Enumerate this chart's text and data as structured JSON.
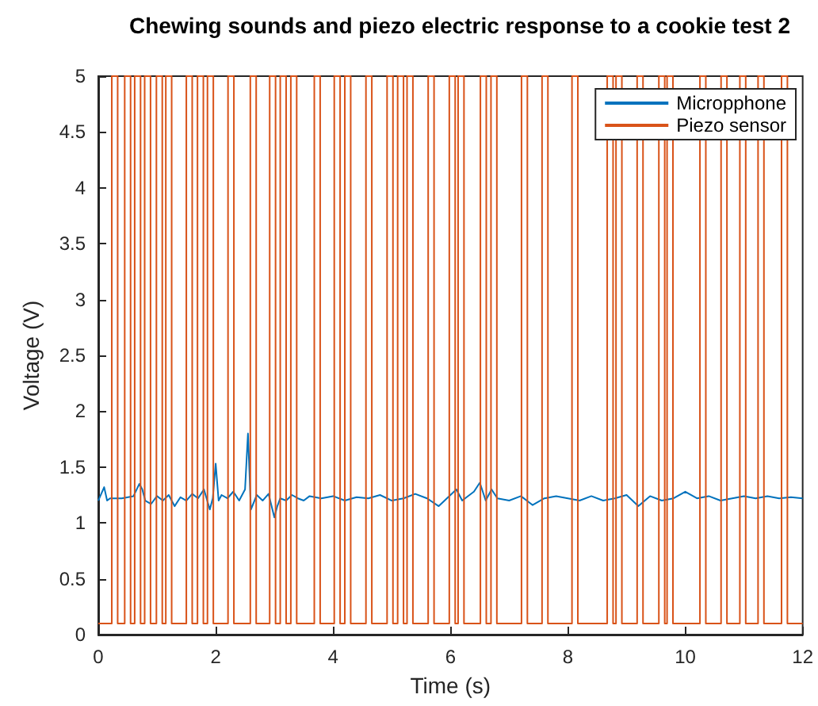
{
  "chart_data": {
    "type": "line",
    "title": "Chewing sounds and piezo electric response to a cookie test 2",
    "xlabel": "Time (s)",
    "ylabel": "Voltage (V)",
    "xlim": [
      0,
      12
    ],
    "xticks": [
      0,
      2,
      4,
      6,
      8,
      10,
      12
    ],
    "ylim": [
      0,
      5
    ],
    "yticks": [
      0,
      0.5,
      1,
      1.5,
      2,
      2.5,
      3,
      3.5,
      4,
      4.5,
      5
    ],
    "grid": false,
    "legend": "top right",
    "marker": "none",
    "line_style": "solid",
    "series": [
      {
        "name": "Micropphone",
        "color": "#0072bd",
        "x": [
          0,
          0.1,
          0.15,
          0.2,
          0.4,
          0.6,
          0.7,
          0.75,
          0.8,
          0.9,
          1.0,
          1.1,
          1.2,
          1.3,
          1.4,
          1.5,
          1.6,
          1.7,
          1.8,
          1.9,
          1.95,
          2.0,
          2.05,
          2.1,
          2.2,
          2.3,
          2.4,
          2.5,
          2.55,
          2.6,
          2.7,
          2.8,
          2.9,
          3.0,
          3.05,
          3.1,
          3.2,
          3.3,
          3.4,
          3.5,
          3.6,
          3.8,
          4.0,
          4.2,
          4.4,
          4.6,
          4.8,
          5.0,
          5.2,
          5.4,
          5.6,
          5.8,
          6.0,
          6.1,
          6.2,
          6.4,
          6.5,
          6.6,
          6.7,
          6.8,
          7.0,
          7.2,
          7.4,
          7.6,
          7.8,
          8.0,
          8.2,
          8.4,
          8.6,
          8.8,
          9.0,
          9.2,
          9.4,
          9.6,
          9.8,
          10.0,
          10.2,
          10.4,
          10.6,
          10.8,
          11.0,
          11.2,
          11.4,
          11.6,
          11.8,
          12.0
        ],
        "values": [
          1.2,
          1.32,
          1.2,
          1.22,
          1.22,
          1.24,
          1.35,
          1.3,
          1.2,
          1.17,
          1.24,
          1.2,
          1.25,
          1.15,
          1.23,
          1.2,
          1.26,
          1.22,
          1.3,
          1.12,
          1.22,
          1.53,
          1.2,
          1.25,
          1.22,
          1.28,
          1.2,
          1.3,
          1.8,
          1.12,
          1.25,
          1.2,
          1.26,
          1.05,
          1.15,
          1.22,
          1.2,
          1.25,
          1.22,
          1.2,
          1.24,
          1.22,
          1.24,
          1.2,
          1.23,
          1.22,
          1.25,
          1.2,
          1.22,
          1.26,
          1.22,
          1.15,
          1.25,
          1.3,
          1.2,
          1.28,
          1.36,
          1.2,
          1.3,
          1.22,
          1.2,
          1.24,
          1.16,
          1.22,
          1.24,
          1.22,
          1.2,
          1.24,
          1.2,
          1.22,
          1.25,
          1.15,
          1.24,
          1.2,
          1.22,
          1.28,
          1.22,
          1.24,
          1.2,
          1.22,
          1.24,
          1.22,
          1.24,
          1.22,
          1.23,
          1.22
        ]
      },
      {
        "name": "Piezo sensor",
        "color": "#d95319",
        "x": [
          0,
          0.23,
          0.23,
          0.33,
          0.33,
          0.45,
          0.45,
          0.55,
          0.55,
          0.62,
          0.62,
          0.72,
          0.72,
          0.79,
          0.79,
          0.89,
          0.89,
          0.99,
          0.99,
          1.09,
          1.09,
          1.15,
          1.15,
          1.25,
          1.25,
          1.5,
          1.5,
          1.6,
          1.6,
          1.69,
          1.69,
          1.79,
          1.79,
          1.86,
          1.86,
          1.96,
          1.96,
          2.21,
          2.21,
          2.31,
          2.31,
          2.59,
          2.59,
          2.69,
          2.69,
          2.92,
          2.92,
          3.02,
          3.02,
          3.1,
          3.1,
          3.2,
          3.2,
          3.28,
          3.28,
          3.38,
          3.38,
          3.68,
          3.68,
          3.78,
          3.78,
          4.02,
          4.02,
          4.12,
          4.12,
          4.2,
          4.2,
          4.3,
          4.3,
          4.56,
          4.56,
          4.66,
          4.66,
          4.92,
          4.92,
          5.02,
          5.02,
          5.1,
          5.1,
          5.2,
          5.2,
          5.26,
          5.26,
          5.36,
          5.36,
          5.62,
          5.62,
          5.72,
          5.72,
          5.98,
          5.98,
          6.08,
          6.08,
          6.13,
          6.13,
          6.23,
          6.23,
          6.51,
          6.51,
          6.61,
          6.61,
          6.69,
          6.69,
          6.79,
          6.79,
          7.21,
          7.21,
          7.31,
          7.31,
          7.56,
          7.56,
          7.66,
          7.66,
          8.07,
          8.07,
          8.17,
          8.17,
          8.67,
          8.67,
          8.77,
          8.77,
          8.82,
          8.82,
          8.92,
          8.92,
          9.18,
          9.18,
          9.28,
          9.28,
          9.55,
          9.55,
          9.65,
          9.65,
          9.69,
          9.69,
          9.79,
          9.79,
          10.25,
          10.25,
          10.35,
          10.35,
          10.61,
          10.61,
          10.71,
          10.71,
          10.93,
          10.93,
          11.03,
          11.03,
          11.24,
          11.24,
          11.34,
          11.34,
          11.64,
          11.64,
          11.74,
          11.74,
          12
        ],
        "values": [
          0.1,
          0.1,
          5,
          5,
          0.1,
          0.1,
          5,
          5,
          0.1,
          0.1,
          5,
          5,
          0.1,
          0.1,
          5,
          5,
          0.1,
          0.1,
          5,
          5,
          0.1,
          0.1,
          5,
          5,
          0.1,
          0.1,
          5,
          5,
          0.1,
          0.1,
          5,
          5,
          0.1,
          0.1,
          5,
          5,
          0.1,
          0.1,
          5,
          5,
          0.1,
          0.1,
          5,
          5,
          0.1,
          0.1,
          5,
          5,
          0.1,
          0.1,
          5,
          5,
          0.1,
          0.1,
          5,
          5,
          0.1,
          0.1,
          5,
          5,
          0.1,
          0.1,
          5,
          5,
          0.1,
          0.1,
          5,
          5,
          0.1,
          0.1,
          5,
          5,
          0.1,
          0.1,
          5,
          5,
          0.1,
          0.1,
          5,
          5,
          0.1,
          0.1,
          5,
          5,
          0.1,
          0.1,
          5,
          5,
          0.1,
          0.1,
          5,
          5,
          0.1,
          0.1,
          5,
          5,
          0.1,
          0.1,
          5,
          5,
          0.1,
          0.1,
          5,
          5,
          0.1,
          0.1,
          5,
          5,
          0.1,
          0.1,
          5,
          5,
          0.1,
          0.1,
          5,
          5,
          0.1,
          0.1,
          5,
          5,
          0.1,
          0.1,
          5,
          5,
          0.1,
          0.1,
          5,
          5,
          0.1,
          0.1,
          5,
          5,
          0.1,
          0.1,
          5,
          5,
          0.1,
          0.1,
          5,
          5,
          0.1,
          0.1,
          5,
          5,
          0.1,
          0.1,
          5,
          5,
          0.1,
          0.1,
          5,
          5,
          0.1,
          0.1,
          5,
          5,
          0.1,
          0.1
        ]
      }
    ]
  }
}
